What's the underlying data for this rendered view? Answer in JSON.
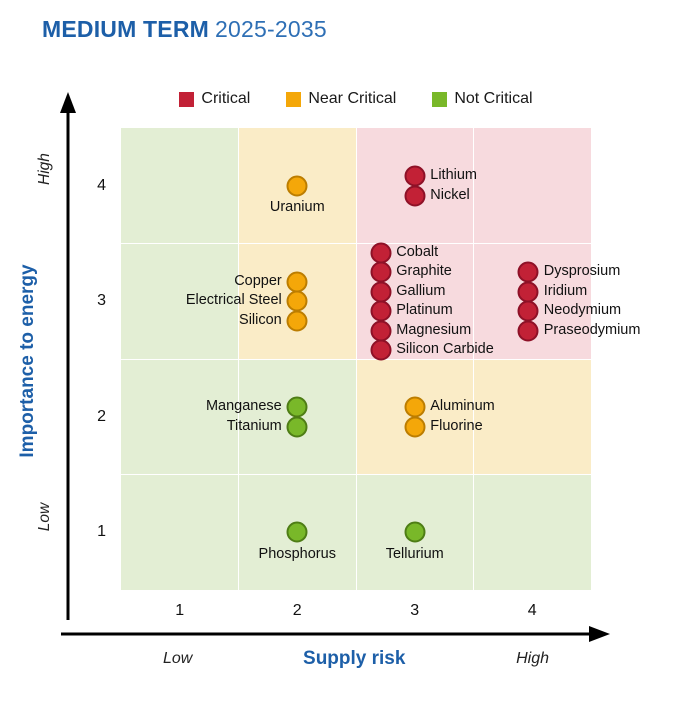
{
  "title": {
    "main": "MEDIUM TERM",
    "period": "2025-2035"
  },
  "legend": [
    {
      "label": "Critical",
      "category": "critical"
    },
    {
      "label": "Near Critical",
      "category": "near_critical"
    },
    {
      "label": "Not Critical",
      "category": "not_critical"
    }
  ],
  "colors": {
    "title_blue": "#1D5FA8",
    "dot": {
      "critical": {
        "fill": "#C22136",
        "stroke": "#8E1127"
      },
      "near_critical": {
        "fill": "#F4A709",
        "stroke": "#BC7D00"
      },
      "not_critical": {
        "fill": "#79B829",
        "stroke": "#4E7D15"
      }
    },
    "zone": {
      "green": "#E3EED4",
      "yellow": "#FAECC7",
      "pink": "#F7DADE"
    }
  },
  "axes": {
    "x_title": "Supply risk",
    "y_title": "Importance to energy",
    "x_low": "Low",
    "x_high": "High",
    "y_low": "Low",
    "y_high": "High"
  },
  "chart_data": {
    "type": "scatter",
    "title": "MEDIUM TERM 2025-2035",
    "xlabel": "Supply risk",
    "ylabel": "Importance to energy",
    "xlim": [
      0.5,
      4.5
    ],
    "ylim": [
      0.5,
      4.5
    ],
    "x_ticks": [
      "1",
      "2",
      "3",
      "4"
    ],
    "y_ticks": [
      "4",
      "3",
      "2",
      "1"
    ],
    "legend_position": "top",
    "grid": "zoned 4x4 criticality matrix",
    "zones": [
      [
        "green",
        "yellow",
        "pink",
        "pink"
      ],
      [
        "green",
        "yellow",
        "pink",
        "pink"
      ],
      [
        "green",
        "green",
        "yellow",
        "yellow"
      ],
      [
        "green",
        "green",
        "green",
        "green"
      ]
    ],
    "groups": [
      {
        "x": 2,
        "y": 4,
        "category": "near_critical",
        "items": [
          "Uranium"
        ],
        "label_side": "below",
        "dx": 0
      },
      {
        "x": 3,
        "y": 4,
        "category": "critical",
        "items": [
          "Lithium",
          "Nickel"
        ],
        "label_side": "right",
        "dx": 0
      },
      {
        "x": 2,
        "y": 3,
        "category": "near_critical",
        "items": [
          "Copper",
          "Electrical Steel",
          "Silicon"
        ],
        "label_side": "left",
        "dx": 0
      },
      {
        "x": 3,
        "y": 3,
        "category": "critical",
        "items": [
          "Cobalt",
          "Graphite",
          "Gallium",
          "Platinum",
          "Magnesium",
          "Silicon Carbide"
        ],
        "label_side": "right",
        "dx": -34
      },
      {
        "x": 4,
        "y": 3,
        "category": "critical",
        "items": [
          "Dysprosium",
          "Iridium",
          "Neodymium",
          "Praseodymium"
        ],
        "label_side": "right",
        "dx": -4
      },
      {
        "x": 2,
        "y": 2,
        "category": "not_critical",
        "items": [
          "Manganese",
          "Titanium"
        ],
        "label_side": "left",
        "dx": 0
      },
      {
        "x": 3,
        "y": 2,
        "category": "near_critical",
        "items": [
          "Aluminum",
          "Fluorine"
        ],
        "label_side": "right",
        "dx": 0
      },
      {
        "x": 2,
        "y": 1,
        "category": "not_critical",
        "items": [
          "Phosphorus"
        ],
        "label_side": "below",
        "dx": 0
      },
      {
        "x": 3,
        "y": 1,
        "category": "not_critical",
        "items": [
          "Tellurium"
        ],
        "label_side": "below",
        "dx": 0
      }
    ]
  }
}
